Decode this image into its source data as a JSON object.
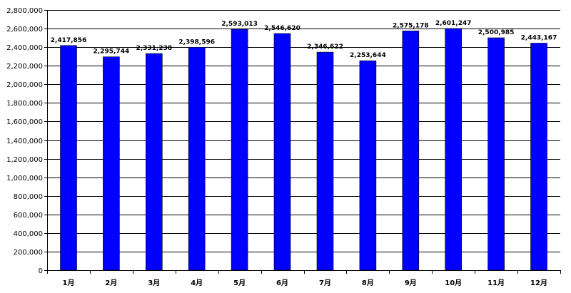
{
  "chart_data": {
    "type": "bar",
    "title": "",
    "xlabel": "",
    "ylabel": "",
    "categories": [
      "1月",
      "2月",
      "3月",
      "4月",
      "5月",
      "6月",
      "7月",
      "8月",
      "9月",
      "10月",
      "11月",
      "12月"
    ],
    "series": [
      {
        "values": [
          2417856,
          2295744,
          2331238,
          2398596,
          2593013,
          2546620,
          2346622,
          2253644,
          2575178,
          2601247,
          2500985,
          2443167
        ],
        "color": "#0000ff"
      }
    ],
    "data_labels": [
      "2,417,856",
      "2,295,744",
      "2,331,238",
      "2,398,596",
      "2,593,013",
      "2,546,620",
      "2,346,622",
      "2,253,644",
      "2,575,178",
      "2,601,247",
      "2,500,985",
      "2,443,167"
    ],
    "yticks": [
      0,
      200000,
      400000,
      600000,
      800000,
      1000000,
      1200000,
      1400000,
      1600000,
      1800000,
      2000000,
      2200000,
      2400000,
      2600000,
      2800000
    ],
    "ytick_labels": [
      "0",
      "200,000",
      "400,000",
      "600,000",
      "800,000",
      "1,000,000",
      "1,200,000",
      "1,400,000",
      "1,600,000",
      "1,800,000",
      "2,000,000",
      "2,200,000",
      "2,400,000",
      "2,600,000",
      "2,800,000"
    ],
    "ylim": [
      0,
      2800000
    ],
    "grid": true,
    "legend": "none",
    "colors": {
      "bar": "#0000ff",
      "bar_edge": "#000000",
      "grid": "#000000",
      "axis": "#000000"
    }
  }
}
